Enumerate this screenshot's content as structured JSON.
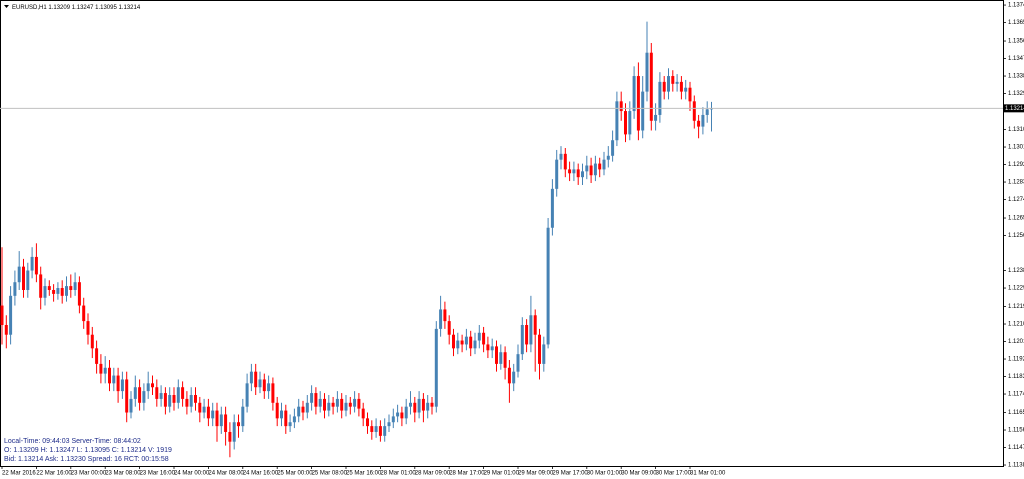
{
  "chart_data": {
    "type": "candlestick",
    "title": "EURUSD,H1",
    "categories": [
      "22 Mar 2016",
      null,
      null,
      null,
      null,
      null,
      null,
      null,
      "22 Mar 16:00",
      null,
      null,
      null,
      null,
      null,
      null,
      null,
      "23 Mar 00:00",
      null,
      null,
      null,
      null,
      null,
      null,
      null,
      "23 Mar 08:00",
      null,
      null,
      null,
      null,
      null,
      null,
      null,
      "23 Mar 16:00",
      null,
      null,
      null,
      null,
      null,
      null,
      null,
      "24 Mar 00:00",
      null,
      null,
      null,
      null,
      null,
      null,
      null,
      "24 Mar 08:00",
      null,
      null,
      null,
      null,
      null,
      null,
      null,
      "24 Mar 16:00",
      null,
      null,
      null,
      null,
      null,
      null,
      null,
      "25 Mar 00:00",
      null,
      null,
      null,
      null,
      null,
      null,
      null,
      "25 Mar 08:00",
      null,
      null,
      null,
      null,
      null,
      null,
      null,
      "25 Mar 16:00",
      null,
      null,
      null,
      null,
      null,
      null,
      null,
      "28 Mar 01:00",
      null,
      null,
      null,
      null,
      null,
      null,
      null,
      "28 Mar 09:00",
      null,
      null,
      null,
      null,
      null,
      null,
      null,
      "28 Mar 17:00",
      null,
      null,
      null,
      null,
      null,
      null,
      null,
      "29 Mar 01:00",
      null,
      null,
      null,
      null,
      null,
      null,
      null,
      "29 Mar 09:00",
      null,
      null,
      null,
      null,
      null,
      null,
      null,
      "29 Mar 17:00",
      null,
      null,
      null,
      null,
      null,
      null,
      null,
      "30 Mar 01:00",
      null,
      null,
      null,
      null,
      null,
      null,
      null,
      "30 Mar 09:00",
      null,
      null,
      null,
      null,
      null,
      null,
      null,
      "30 Mar 17:00",
      null,
      null,
      null,
      null,
      null,
      null,
      null,
      "31 Mar 01:00",
      null,
      null,
      null,
      null,
      null
    ],
    "open": [
      1.122,
      1.121,
      1.1205,
      1.1225,
      1.1232,
      1.124,
      1.1228,
      1.1238,
      1.1245,
      1.1236,
      1.1224,
      1.123,
      1.1228,
      1.1226,
      1.1229,
      1.1225,
      1.123,
      1.1228,
      1.1232,
      1.122,
      1.1212,
      1.1205,
      1.1198,
      1.119,
      1.1185,
      1.1188,
      1.118,
      1.1184,
      1.1176,
      1.1182,
      1.1165,
      1.1172,
      1.1178,
      1.117,
      1.1176,
      1.118,
      1.1178,
      1.1172,
      1.1175,
      1.1168,
      1.1174,
      1.117,
      1.1178,
      1.1172,
      1.1168,
      1.1174,
      1.117,
      1.1165,
      1.1168,
      1.1162,
      1.1166,
      1.1158,
      1.1164,
      1.1155,
      1.115,
      1.116,
      1.1158,
      1.1168,
      1.118,
      1.1186,
      1.1178,
      1.1182,
      1.1176,
      1.118,
      1.117,
      1.1162,
      1.1166,
      1.1158,
      1.116,
      1.1163,
      1.1168,
      1.1165,
      1.117,
      1.1175,
      1.1168,
      1.1172,
      1.1166,
      1.117,
      1.1168,
      1.1172,
      1.1166,
      1.117,
      1.1168,
      1.1172,
      1.1167,
      1.1162,
      1.1158,
      1.1155,
      1.1158,
      1.1153,
      1.1158,
      1.116,
      1.1163,
      1.1165,
      1.1162,
      1.1168,
      1.117,
      1.1165,
      1.1172,
      1.1166,
      1.117,
      1.1168,
      1.1208,
      1.1218,
      1.1212,
      1.1205,
      1.1198,
      1.1202,
      1.12,
      1.1204,
      1.1198,
      1.1202,
      1.1206,
      1.12,
      1.1197,
      1.1199,
      1.119,
      1.1196,
      1.1188,
      1.118,
      1.1186,
      1.1195,
      1.121,
      1.12,
      1.1215,
      1.1205,
      1.119,
      1.12,
      1.126,
      1.128,
      1.1295,
      1.1298,
      1.129,
      1.1288,
      1.129,
      1.1286,
      1.1289,
      1.1292,
      1.1287,
      1.1293,
      1.129,
      1.1295,
      1.1297,
      1.1305,
      1.1325,
      1.132,
      1.1308,
      1.132,
      1.1338,
      1.131,
      1.133,
      1.135,
      1.1315,
      1.1318,
      1.1335,
      1.133,
      1.1338,
      1.1334,
      1.1335,
      1.133,
      1.1332,
      1.1325,
      1.1315,
      1.1312,
      1.1318,
      1.13209
    ],
    "high": [
      1.125,
      1.1215,
      1.123,
      1.1238,
      1.1248,
      1.1244,
      1.1242,
      1.125,
      1.1252,
      1.124,
      1.1234,
      1.1233,
      1.1231,
      1.1232,
      1.1233,
      1.1235,
      1.1236,
      1.1237,
      1.1235,
      1.1224,
      1.1216,
      1.1209,
      1.1202,
      1.1195,
      1.1194,
      1.1192,
      1.1188,
      1.1188,
      1.1186,
      1.1186,
      1.1176,
      1.1184,
      1.1182,
      1.118,
      1.1186,
      1.1184,
      1.1182,
      1.1179,
      1.1178,
      1.1178,
      1.1178,
      1.1182,
      1.1181,
      1.1176,
      1.1178,
      1.1178,
      1.1173,
      1.1172,
      1.1172,
      1.117,
      1.117,
      1.1168,
      1.1168,
      1.116,
      1.1164,
      1.1164,
      1.1172,
      1.1185,
      1.119,
      1.119,
      1.1186,
      1.1185,
      1.1184,
      1.1183,
      1.1173,
      1.117,
      1.1169,
      1.1164,
      1.1167,
      1.1172,
      1.1171,
      1.1174,
      1.1179,
      1.1178,
      1.1176,
      1.1175,
      1.1174,
      1.1173,
      1.1176,
      1.1175,
      1.1174,
      1.1173,
      1.1176,
      1.1175,
      1.117,
      1.1165,
      1.1161,
      1.1162,
      1.1161,
      1.1162,
      1.1164,
      1.1167,
      1.1169,
      1.1168,
      1.1172,
      1.1176,
      1.1173,
      1.1176,
      1.1175,
      1.1174,
      1.1173,
      1.1212,
      1.1225,
      1.1222,
      1.1215,
      1.1208,
      1.1206,
      1.1205,
      1.1208,
      1.1207,
      1.1206,
      1.121,
      1.1209,
      1.1204,
      1.1203,
      1.1202,
      1.12,
      1.1199,
      1.1192,
      1.119,
      1.12,
      1.1214,
      1.1213,
      1.1225,
      1.1218,
      1.1208,
      1.1204,
      1.1265,
      1.1285,
      1.13,
      1.1302,
      1.1301,
      1.1294,
      1.1294,
      1.1293,
      1.1293,
      1.1297,
      1.1296,
      1.1297,
      1.1296,
      1.1299,
      1.1302,
      1.131,
      1.133,
      1.133,
      1.1324,
      1.1325,
      1.1343,
      1.1345,
      1.1338,
      1.1366,
      1.1355,
      1.1324,
      1.134,
      1.1338,
      1.1342,
      1.1341,
      1.1339,
      1.1338,
      1.1336,
      1.1335,
      1.1328,
      1.1318,
      1.1322,
      1.1325,
      1.13247
    ],
    "low": [
      1.12,
      1.1198,
      1.12,
      1.122,
      1.1228,
      1.1224,
      1.1224,
      1.1234,
      1.1232,
      1.1218,
      1.122,
      1.1225,
      1.1222,
      1.1223,
      1.1221,
      1.1222,
      1.1224,
      1.1225,
      1.1216,
      1.1208,
      1.12,
      1.1193,
      1.1185,
      1.118,
      1.118,
      1.1176,
      1.1176,
      1.117,
      1.1172,
      1.116,
      1.1162,
      1.1168,
      1.1166,
      1.1166,
      1.1172,
      1.1174,
      1.1168,
      1.1168,
      1.1164,
      1.1165,
      1.1166,
      1.1167,
      1.1168,
      1.1164,
      1.1165,
      1.1166,
      1.116,
      1.1162,
      1.1158,
      1.1158,
      1.115,
      1.1154,
      1.1148,
      1.1142,
      1.1146,
      1.1152,
      1.1155,
      1.1165,
      1.1176,
      1.1174,
      1.1175,
      1.1172,
      1.1172,
      1.1166,
      1.1158,
      1.1158,
      1.1154,
      1.1155,
      1.1157,
      1.116,
      1.1161,
      1.1162,
      1.1166,
      1.1164,
      1.1165,
      1.1162,
      1.1163,
      1.1164,
      1.1165,
      1.1162,
      1.1163,
      1.1164,
      1.1165,
      1.1163,
      1.1158,
      1.1154,
      1.1151,
      1.1152,
      1.115,
      1.115,
      1.1155,
      1.1157,
      1.116,
      1.1158,
      1.1159,
      1.1164,
      1.116,
      1.1162,
      1.116,
      1.1162,
      1.1164,
      1.1165,
      1.1204,
      1.1208,
      1.12,
      1.1194,
      1.1195,
      1.1196,
      1.1197,
      1.1194,
      1.1195,
      1.1198,
      1.1196,
      1.1193,
      1.1193,
      1.1186,
      1.1187,
      1.1182,
      1.117,
      1.1176,
      1.1183,
      1.1192,
      1.1196,
      1.1196,
      1.1186,
      1.1182,
      1.1186,
      1.1198,
      1.1256,
      1.1276,
      1.129,
      1.1286,
      1.1284,
      1.1284,
      1.1282,
      1.1282,
      1.1285,
      1.1283,
      1.1284,
      1.1286,
      1.1287,
      1.1291,
      1.1294,
      1.1302,
      1.1315,
      1.1304,
      1.1305,
      1.1316,
      1.1305,
      1.1306,
      1.1325,
      1.131,
      1.131,
      1.1314,
      1.1326,
      1.1326,
      1.133,
      1.133,
      1.1326,
      1.1326,
      1.132,
      1.1311,
      1.1306,
      1.1308,
      1.1314,
      1.13095
    ],
    "close": [
      1.121,
      1.1205,
      1.1225,
      1.1232,
      1.124,
      1.1228,
      1.1238,
      1.1245,
      1.1236,
      1.1224,
      1.123,
      1.1228,
      1.1226,
      1.1229,
      1.1225,
      1.123,
      1.1228,
      1.1232,
      1.122,
      1.1212,
      1.1205,
      1.1198,
      1.119,
      1.1185,
      1.1188,
      1.118,
      1.1184,
      1.1176,
      1.1182,
      1.1165,
      1.1172,
      1.1178,
      1.117,
      1.1176,
      1.118,
      1.1178,
      1.1172,
      1.1175,
      1.1168,
      1.1174,
      1.117,
      1.1178,
      1.1172,
      1.1168,
      1.1174,
      1.117,
      1.1165,
      1.1168,
      1.1162,
      1.1166,
      1.1158,
      1.1164,
      1.1155,
      1.115,
      1.116,
      1.1158,
      1.1168,
      1.118,
      1.1186,
      1.1178,
      1.1182,
      1.1176,
      1.118,
      1.117,
      1.1162,
      1.1166,
      1.1158,
      1.116,
      1.1163,
      1.1168,
      1.1165,
      1.117,
      1.1175,
      1.1168,
      1.1172,
      1.1166,
      1.117,
      1.1168,
      1.1172,
      1.1166,
      1.117,
      1.1168,
      1.1172,
      1.1167,
      1.1162,
      1.1158,
      1.1155,
      1.1158,
      1.1153,
      1.1158,
      1.116,
      1.1163,
      1.1165,
      1.1162,
      1.1168,
      1.117,
      1.1165,
      1.1172,
      1.1166,
      1.117,
      1.1168,
      1.1208,
      1.1218,
      1.1212,
      1.1205,
      1.1198,
      1.1202,
      1.12,
      1.1204,
      1.1198,
      1.1202,
      1.1206,
      1.12,
      1.1197,
      1.1199,
      1.119,
      1.1196,
      1.1188,
      1.118,
      1.1186,
      1.1195,
      1.121,
      1.12,
      1.1215,
      1.1205,
      1.119,
      1.12,
      1.126,
      1.128,
      1.1295,
      1.1298,
      1.129,
      1.1288,
      1.129,
      1.1286,
      1.1289,
      1.1292,
      1.1287,
      1.1293,
      1.129,
      1.1295,
      1.1297,
      1.1305,
      1.1325,
      1.132,
      1.1308,
      1.132,
      1.1338,
      1.131,
      1.133,
      1.135,
      1.1315,
      1.1318,
      1.1335,
      1.133,
      1.1338,
      1.1334,
      1.1335,
      1.133,
      1.1332,
      1.1325,
      1.1315,
      1.1312,
      1.1318,
      1.13209,
      1.13214
    ],
    "up_color": "#4682b4",
    "down_color": "#ff0000",
    "ylim": [
      1.11375,
      1.13771
    ],
    "yticks": [
      1.13745,
      1.13655,
      {
        "value": 1.1356,
        "label": "1.13560"
      },
      {
        "value": 1.1347,
        "label": "1.13470"
      },
      {
        "value": 1.1338,
        "label": "1.13380"
      },
      {
        "value": 1.1329,
        "label": "1.13290"
      },
      1.13105,
      1.13015,
      1.12925,
      1.12835,
      1.12745,
      {
        "value": 1.1265,
        "label": "1.12650"
      },
      {
        "value": 1.1256,
        "label": "1.12560"
      },
      {
        "value": 1.1238,
        "label": "1.12380"
      },
      {
        "value": 1.1229,
        "label": "1.12290"
      },
      1.12195,
      1.12105,
      1.12015,
      1.11925,
      1.11835,
      1.11745,
      {
        "value": 1.1165,
        "label": "1.11650"
      },
      {
        "value": 1.1156,
        "label": "1.11560"
      },
      {
        "value": 1.1147,
        "label": "1.11470"
      },
      {
        "value": 1.1138,
        "label": "1.11380"
      }
    ],
    "info": [
      "Local-Time: 09:44:03 Server-Time: 08:44:02",
      "O: 1.13209 H: 1.13247 L: 1.13095 C: 1.13214 V: 1919",
      "Bid: 1.13214 Ask: 1.13230 Spread: 16 RCT: 00:15:58"
    ]
  }
}
